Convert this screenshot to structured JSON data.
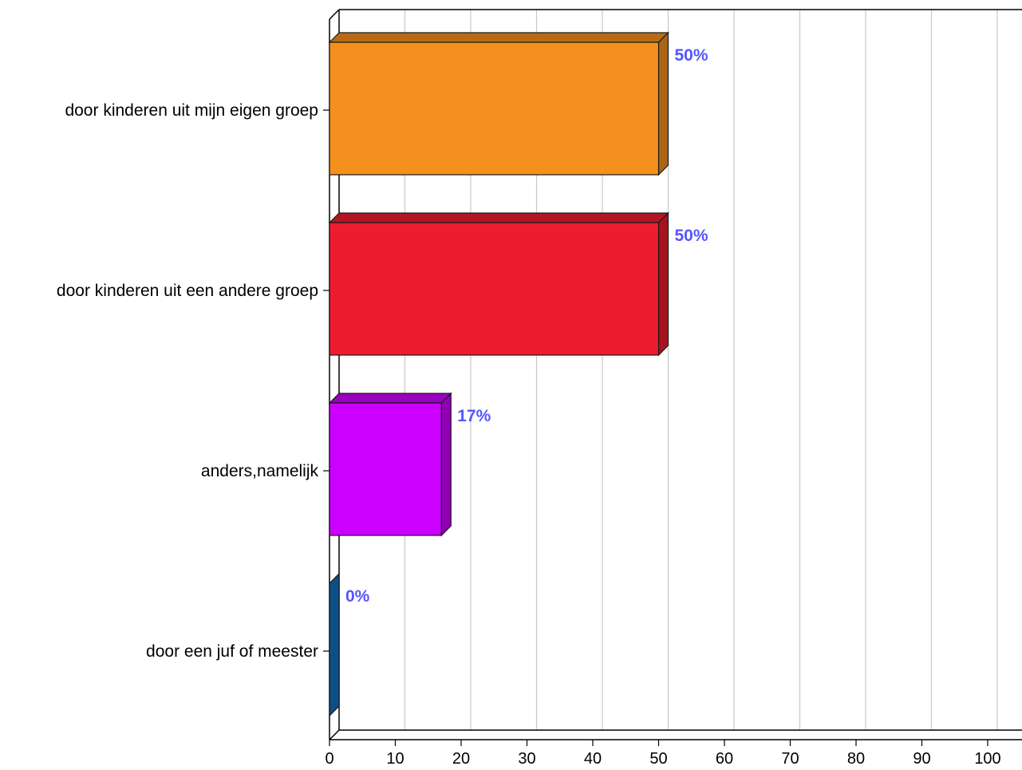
{
  "chart_data": {
    "type": "bar",
    "orientation": "horizontal",
    "style": "3d",
    "categories": [
      "door kinderen uit mijn eigen groep",
      "door kinderen uit een andere groep",
      "anders,namelijk",
      "door een juf of meester"
    ],
    "values": [
      50,
      50,
      17,
      0
    ],
    "data_labels": [
      "50%",
      "50%",
      "17%",
      "0%"
    ],
    "bar_colors": [
      "#f5901e",
      "#ed1c2e",
      "#cc00ff",
      "#0b4f88"
    ],
    "data_label_color": "#5555ff",
    "xlim": [
      0,
      100
    ],
    "xticks": [
      0,
      10,
      20,
      30,
      40,
      50,
      60,
      70,
      80,
      90,
      100
    ],
    "xtick_labels": [
      "0",
      "10",
      "20",
      "30",
      "40",
      "50",
      "60",
      "70",
      "80",
      "90",
      "100"
    ],
    "grid": "vertical",
    "legend": "none",
    "title": "",
    "xlabel": "",
    "ylabel": ""
  }
}
